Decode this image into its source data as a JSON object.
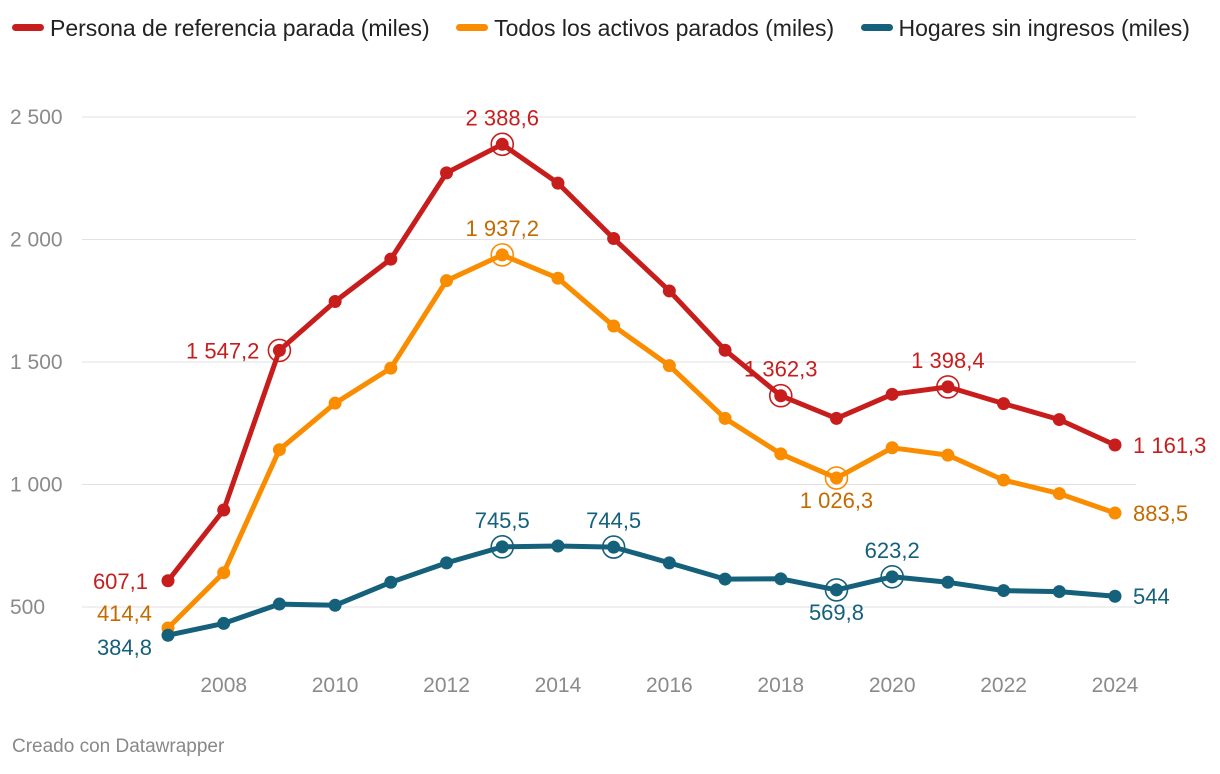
{
  "chart_data": {
    "type": "line",
    "title": "",
    "xlabel": "",
    "ylabel": "",
    "x": [
      2007,
      2008,
      2009,
      2010,
      2011,
      2012,
      2013,
      2014,
      2015,
      2016,
      2017,
      2018,
      2019,
      2020,
      2021,
      2022,
      2023,
      2024
    ],
    "x_ticks": [
      "2008",
      "2010",
      "2012",
      "2014",
      "2016",
      "2018",
      "2020",
      "2022",
      "2024"
    ],
    "x_tick_values": [
      2008,
      2010,
      2012,
      2014,
      2016,
      2018,
      2020,
      2022,
      2024
    ],
    "y_ticks": [
      "500",
      "1 000",
      "1 500",
      "2 000",
      "2 500"
    ],
    "y_tick_values": [
      500,
      1000,
      1500,
      2000,
      2500
    ],
    "xlim": [
      2007,
      2024
    ],
    "ylim": [
      300,
      2500
    ],
    "grid": true,
    "series": [
      {
        "name": "Persona de referencia parada (miles)",
        "color": "#c71e1d",
        "label_color": "#c71e1d",
        "values": [
          607.1,
          896,
          1547.2,
          1747,
          1920,
          2272,
          2388.6,
          2230,
          2004,
          1790,
          1548,
          1362.3,
          1270,
          1368,
          1398.4,
          1330,
          1265,
          1161.3
        ],
        "labels": [
          {
            "index": 0,
            "text": "607,1",
            "pos": "left",
            "ring": false
          },
          {
            "index": 2,
            "text": "1 547,2",
            "pos": "left",
            "ring": true
          },
          {
            "index": 6,
            "text": "2 388,6",
            "pos": "above",
            "ring": true
          },
          {
            "index": 11,
            "text": "1 362,3",
            "pos": "above",
            "ring": true
          },
          {
            "index": 14,
            "text": "1 398,4",
            "pos": "above",
            "ring": true
          },
          {
            "index": 17,
            "text": "1 161,3",
            "pos": "right",
            "ring": false
          }
        ]
      },
      {
        "name": "Todos los activos parados (miles)",
        "color": "#fa8c00",
        "label_color": "#c46a00",
        "values": [
          414.4,
          640,
          1142,
          1332,
          1475,
          1832,
          1937.2,
          1842,
          1647,
          1485,
          1270,
          1125,
          1026.3,
          1150,
          1120,
          1018,
          963,
          883.5
        ],
        "labels": [
          {
            "index": 0,
            "text": "414,4",
            "pos": "left-up",
            "ring": false
          },
          {
            "index": 6,
            "text": "1 937,2",
            "pos": "above",
            "ring": true
          },
          {
            "index": 12,
            "text": "1 026,3",
            "pos": "below",
            "ring": true
          },
          {
            "index": 17,
            "text": "883,5",
            "pos": "right",
            "ring": false
          }
        ]
      },
      {
        "name": "Hogares sin ingresos",
        "color": "#15607a",
        "label_color": "#15607a",
        "values": [
          384.8,
          433,
          512,
          507,
          601,
          680,
          745.5,
          749,
          744.5,
          680,
          614,
          615,
          569.8,
          623.2,
          601,
          567,
          563,
          544
        ],
        "labels": [
          {
            "index": 0,
            "text": "384,8",
            "pos": "left-down",
            "ring": false
          },
          {
            "index": 6,
            "text": "745,5",
            "pos": "above",
            "ring": true
          },
          {
            "index": 8,
            "text": "744,5",
            "pos": "above",
            "ring": true
          },
          {
            "index": 12,
            "text": "569,8",
            "pos": "below",
            "ring": true
          },
          {
            "index": 13,
            "text": "623,2",
            "pos": "above",
            "ring": true
          },
          {
            "index": 17,
            "text": "544",
            "pos": "right",
            "ring": false
          }
        ]
      }
    ],
    "legend_position": "top-left",
    "footer": "Creado con Datawrapper"
  }
}
